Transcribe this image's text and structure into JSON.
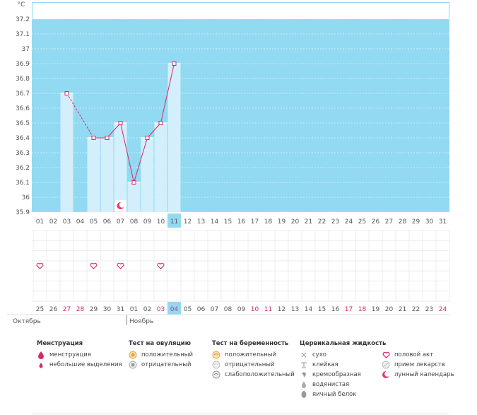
{
  "chart_data": {
    "type": "line",
    "title": "",
    "ylabel": "°C",
    "xlabel": "",
    "ylim": [
      35.9,
      37.2
    ],
    "yticks": [
      "37.2",
      "37.1",
      "37",
      "36.9",
      "36.8",
      "36.7",
      "36.6",
      "36.5",
      "36.4",
      "36.3",
      "36.2",
      "36.1",
      "36",
      "35.9"
    ],
    "cycle_days": [
      "01",
      "02",
      "03",
      "04",
      "05",
      "06",
      "07",
      "08",
      "09",
      "10",
      "11",
      "12",
      "13",
      "14",
      "15",
      "16",
      "17",
      "18",
      "19",
      "20",
      "21",
      "22",
      "23",
      "24",
      "25",
      "26",
      "27",
      "28",
      "29",
      "30",
      "31"
    ],
    "current_day_index": 10,
    "temperatures": [
      {
        "day": 3,
        "value": 36.7
      },
      {
        "day": 5,
        "value": 36.4
      },
      {
        "day": 6,
        "value": 36.4
      },
      {
        "day": 7,
        "value": 36.5
      },
      {
        "day": 8,
        "value": 36.1
      },
      {
        "day": 9,
        "value": 36.4
      },
      {
        "day": 10,
        "value": 36.5
      },
      {
        "day": 11,
        "value": 36.9
      }
    ],
    "dashed_segments": [
      [
        3,
        5
      ]
    ],
    "intercourse_days": [
      1,
      5,
      7,
      10
    ],
    "lunar_calendar_days": [
      7
    ],
    "date_labels": [
      {
        "t": "25",
        "red": false
      },
      {
        "t": "26",
        "red": false
      },
      {
        "t": "27",
        "red": true
      },
      {
        "t": "28",
        "red": true
      },
      {
        "t": "29",
        "red": false
      },
      {
        "t": "30",
        "red": false
      },
      {
        "t": "31",
        "red": false
      },
      {
        "t": "01",
        "red": false
      },
      {
        "t": "02",
        "red": false
      },
      {
        "t": "03",
        "red": true
      },
      {
        "t": "04",
        "red": true
      },
      {
        "t": "05",
        "red": false
      },
      {
        "t": "06",
        "red": false
      },
      {
        "t": "07",
        "red": false
      },
      {
        "t": "08",
        "red": false
      },
      {
        "t": "09",
        "red": false
      },
      {
        "t": "10",
        "red": true
      },
      {
        "t": "11",
        "red": true
      },
      {
        "t": "12",
        "red": false
      },
      {
        "t": "13",
        "red": false
      },
      {
        "t": "14",
        "red": false
      },
      {
        "t": "15",
        "red": false
      },
      {
        "t": "16",
        "red": false
      },
      {
        "t": "17",
        "red": true
      },
      {
        "t": "18",
        "red": true
      },
      {
        "t": "19",
        "red": false
      },
      {
        "t": "20",
        "red": false
      },
      {
        "t": "21",
        "red": false
      },
      {
        "t": "22",
        "red": false
      },
      {
        "t": "23",
        "red": false
      },
      {
        "t": "24",
        "red": true
      }
    ],
    "months": [
      {
        "label": "Октябрь",
        "from_index": 0
      },
      {
        "label": "Ноябрь",
        "from_index": 7
      }
    ]
  },
  "colors": {
    "plot_bg": "#92d9f2",
    "bar_fill": "#d3effc",
    "line": "#d6286a",
    "highlight": "#92d9f2",
    "red_text": "#d6286a",
    "grid": "#ececec"
  },
  "legend": {
    "menstruation": {
      "title": "Менструация",
      "items": [
        {
          "icon": "drop-icon",
          "label": "менструация"
        },
        {
          "icon": "small-drop-icon",
          "label": "небольшие выделения"
        }
      ]
    },
    "ovulation_test": {
      "title": "Тест на овуляцию",
      "items": [
        {
          "icon": "positive-test-icon",
          "label": "положительный"
        },
        {
          "icon": "negative-test-icon",
          "label": "отрицательный"
        }
      ]
    },
    "pregnancy_test": {
      "title": "Тест на беременность",
      "items": [
        {
          "icon": "positive-pregnancy-icon",
          "label": "положительный"
        },
        {
          "icon": "negative-pregnancy-icon",
          "label": "отрицательный"
        },
        {
          "icon": "weak-positive-icon",
          "label": "слабоположительный"
        }
      ]
    },
    "cervical_fluid": {
      "title": "Цервикальная жидкость",
      "items": [
        {
          "icon": "dry-icon",
          "label": "сухо"
        },
        {
          "icon": "sticky-icon",
          "label": "клейкая"
        },
        {
          "icon": "creamy-icon",
          "label": "кремообразная"
        },
        {
          "icon": "watery-icon",
          "label": "водянистая"
        },
        {
          "icon": "egg-white-icon",
          "label": "яичный белок"
        }
      ]
    },
    "other": {
      "items": [
        {
          "icon": "heart-icon",
          "label": "половой акт"
        },
        {
          "icon": "pill-icon",
          "label": "прием лекарств"
        },
        {
          "icon": "moon-icon",
          "label": "лунный календарь"
        }
      ]
    }
  }
}
